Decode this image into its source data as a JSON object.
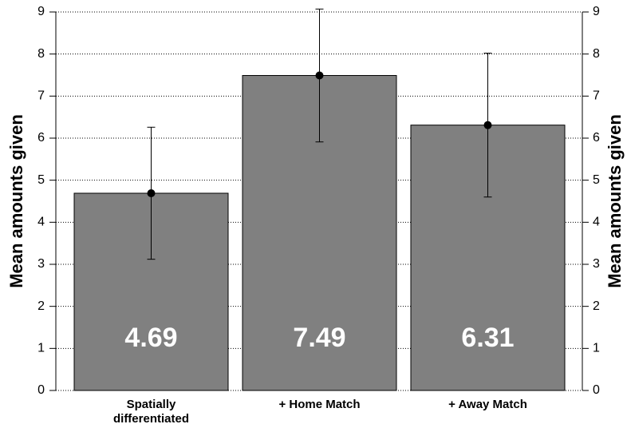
{
  "chart_data": {
    "type": "bar",
    "categories": [
      "Spatially differentiated",
      "+ Home Match",
      "+ Away Match"
    ],
    "values": [
      4.69,
      7.49,
      6.31
    ],
    "errors": [
      1.57,
      1.58,
      1.71
    ],
    "color": "#808080",
    "ylabel": "Mean amounts given",
    "y2label": "Mean amounts given",
    "ylim": [
      0,
      9
    ],
    "yticks": [
      0,
      1,
      2,
      3,
      4,
      5,
      6,
      7,
      8,
      9
    ],
    "y2lim": [
      0,
      9
    ],
    "y2ticks": [
      0,
      1,
      2,
      3,
      4,
      5,
      6,
      7,
      8,
      9
    ],
    "grid": true
  }
}
